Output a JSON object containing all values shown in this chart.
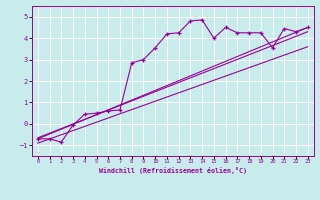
{
  "xlabel": "Windchill (Refroidissement éolien,°C)",
  "bg_color": "#c8ecec",
  "line_color": "#990099",
  "grid_color": "#ffffff",
  "xlim": [
    -0.5,
    23.5
  ],
  "ylim": [
    -1.5,
    5.5
  ],
  "xticks": [
    0,
    1,
    2,
    3,
    4,
    5,
    6,
    7,
    8,
    9,
    10,
    11,
    12,
    13,
    14,
    15,
    16,
    17,
    18,
    19,
    20,
    21,
    22,
    23
  ],
  "yticks": [
    -1,
    0,
    1,
    2,
    3,
    4,
    5
  ],
  "data_x": [
    0,
    1,
    2,
    3,
    4,
    5,
    6,
    7,
    8,
    9,
    10,
    11,
    12,
    13,
    14,
    15,
    16,
    17,
    18,
    19,
    20,
    21,
    22,
    23
  ],
  "data_y": [
    -0.7,
    -0.7,
    -0.85,
    -0.05,
    0.45,
    0.5,
    0.6,
    0.65,
    2.85,
    3.0,
    3.55,
    4.2,
    4.25,
    4.8,
    4.85,
    4.0,
    4.5,
    4.25,
    4.25,
    4.25,
    3.55,
    4.45,
    4.3,
    4.5
  ],
  "line1_x": [
    0,
    23
  ],
  "line1_y": [
    -0.7,
    4.5
  ],
  "line2_x": [
    0,
    23
  ],
  "line2_y": [
    -0.9,
    3.6
  ],
  "line3_x": [
    0,
    23
  ],
  "line3_y": [
    -0.65,
    4.3
  ]
}
